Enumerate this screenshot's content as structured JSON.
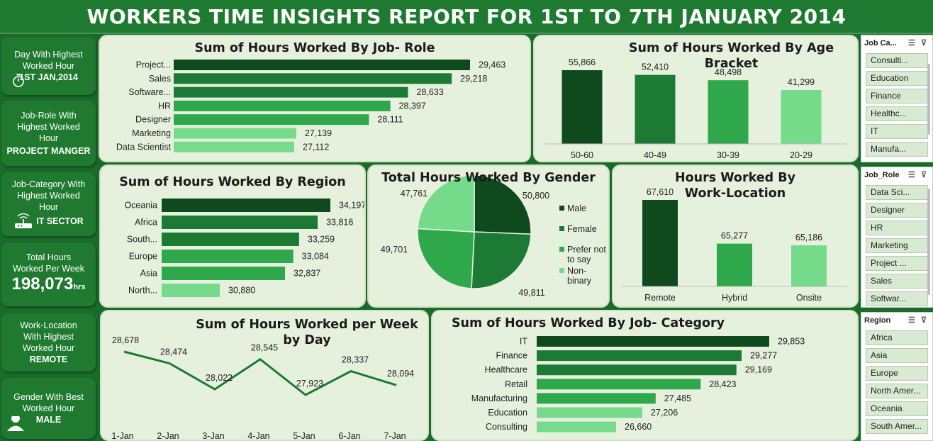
{
  "title": "WORKERS TIME INSIGHTS REPORT FOR 1ST TO 7TH JANUARY 2014",
  "kpis": {
    "day": {
      "label": "Day With Highest Worked Hour",
      "value": "1ST JAN,2014"
    },
    "role": {
      "label": "Job-Role With Highest Worked Hour",
      "value": "PROJECT MANGER"
    },
    "category": {
      "label": "Job-Category With Highest Worked Hour",
      "value": "IT SECTOR"
    },
    "total": {
      "label": "Total Hours Worked  Per Week",
      "value": "198,073",
      "unit": "hrs"
    },
    "location": {
      "label": "Work-Location With Highest Worked Hour",
      "value": "REMOTE"
    },
    "gender": {
      "label": "Gender With Best Worked Hour",
      "value": "MALE"
    }
  },
  "colors": {
    "c1": "#0f4a1f",
    "c2": "#1c7a34",
    "c3": "#2ea84a",
    "c4": "#75db8b"
  },
  "chart_data": [
    {
      "type": "bar",
      "orientation": "horizontal",
      "title": "Sum of Hours Worked By Job- Role",
      "categories": [
        "Project...",
        "Sales",
        "Software...",
        "HR",
        "Designer",
        "Marketing",
        "Data Scientist"
      ],
      "values": [
        29463,
        29218,
        28633,
        28397,
        28111,
        27139,
        27112
      ],
      "labels": [
        "29,463",
        "29,218",
        "28,633",
        "28,397",
        "28,111",
        "27,139",
        "27,112"
      ]
    },
    {
      "type": "bar",
      "title": "Sum of Hours Worked By Age Bracket",
      "categories": [
        "50-60",
        "40-49",
        "30-39",
        "20-29"
      ],
      "values": [
        55866,
        52410,
        48498,
        41299
      ],
      "labels": [
        "55,866",
        "52,410",
        "48,498",
        "41,299"
      ]
    },
    {
      "type": "bar",
      "orientation": "horizontal",
      "title": "Sum of Hours Worked By Region",
      "categories": [
        "Oceania",
        "Africa",
        "South...",
        "Europe",
        "Asia",
        "North..."
      ],
      "values": [
        34197,
        33816,
        33259,
        33084,
        32837,
        30880
      ],
      "labels": [
        "34,197",
        "33,816",
        "33,259",
        "33,084",
        "32,837",
        "30,880"
      ]
    },
    {
      "type": "pie",
      "title": "Total Hours Worked By Gender",
      "categories": [
        "Male",
        "Female",
        "Prefer not to say",
        "Non-binary"
      ],
      "values": [
        50800,
        49811,
        49701,
        47761
      ],
      "labels": [
        "50,800",
        "49,811",
        "49,701",
        "47,761"
      ],
      "legend_position": "right"
    },
    {
      "type": "bar",
      "title": "Hours Worked By Work-Location",
      "categories": [
        "Remote",
        "Hybrid",
        "Onsite"
      ],
      "values": [
        67610,
        65277,
        65186
      ],
      "labels": [
        "67,610",
        "65,277",
        "65,186"
      ]
    },
    {
      "type": "line",
      "title": "Sum of Hours Worked per Week by Day",
      "categories": [
        "1-Jan",
        "2-Jan",
        "3-Jan",
        "4-Jan",
        "5-Jan",
        "6-Jan",
        "7-Jan"
      ],
      "values": [
        28678,
        28474,
        28022,
        28545,
        27923,
        28337,
        28094
      ],
      "labels": [
        "28,678",
        "28,474",
        "28,022",
        "28,545",
        "27,923",
        "28,337",
        "28,094"
      ]
    },
    {
      "type": "bar",
      "orientation": "horizontal",
      "title": "Sum of Hours Worked By Job- Category",
      "categories": [
        "IT",
        "Finance",
        "Healthcare",
        "Retail",
        "Manufacturing",
        "Education",
        "Consulting"
      ],
      "values": [
        29853,
        29277,
        29169,
        28423,
        27485,
        27206,
        26660
      ],
      "labels": [
        "29,853",
        "29,277",
        "29,169",
        "28,423",
        "27,485",
        "27,206",
        "26,660"
      ]
    }
  ],
  "slicers": [
    {
      "title": "Job Ca...",
      "items": [
        "Consulti...",
        "Education",
        "Finance",
        "Healthc...",
        "IT",
        "Manufa..."
      ]
    },
    {
      "title": "Job_Role",
      "items": [
        "Data Sci...",
        "Designer",
        "HR",
        "Marketing",
        "Project ...",
        "Sales",
        "Softwar..."
      ]
    },
    {
      "title": "Region",
      "items": [
        "Africa",
        "Asia",
        "Europe",
        "North Amer...",
        "Oceania",
        "South Amer..."
      ]
    }
  ]
}
